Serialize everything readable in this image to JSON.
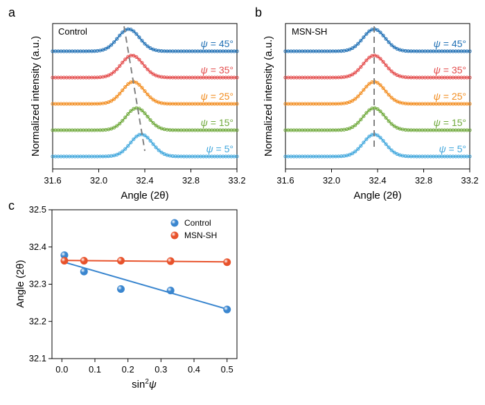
{
  "chart_data": [
    {
      "panel": "a",
      "type": "line",
      "label": "Control",
      "xlabel": "Angle (2θ)",
      "ylabel": "Normalized intensity (a.u.)",
      "xlim": [
        31.6,
        33.2
      ],
      "xticks": [
        31.6,
        32.0,
        32.4,
        32.8,
        33.2
      ],
      "xtick_labels": [
        "31.6",
        "32.0",
        "32.4",
        "32.8",
        "33.2"
      ],
      "series": [
        {
          "name": "ψ = 45°",
          "psi_symbol": "ψ",
          "psi_value": " = 45°",
          "color": "#1f6fb4",
          "peak": 32.26
        },
        {
          "name": "ψ = 35°",
          "psi_symbol": "ψ",
          "psi_value": " = 35°",
          "color": "#e34a4a",
          "peak": 32.29
        },
        {
          "name": "ψ = 25°",
          "psi_symbol": "ψ",
          "psi_value": " = 25°",
          "color": "#f28c1e",
          "peak": 32.3
        },
        {
          "name": "ψ = 15°",
          "psi_symbol": "ψ",
          "psi_value": " = 15°",
          "color": "#6ea83a",
          "peak": 32.33
        },
        {
          "name": "ψ = 5°",
          "psi_symbol": "ψ",
          "psi_value": " = 5°",
          "color": "#3fa6dc",
          "peak": 32.37
        }
      ],
      "guide_line": {
        "from": 32.22,
        "to": 32.4,
        "color": "#808080"
      }
    },
    {
      "panel": "b",
      "type": "line",
      "label": "MSN-SH",
      "xlabel": "Angle (2θ)",
      "ylabel": "Normalized intensity (a.u.)",
      "xlim": [
        31.6,
        33.2
      ],
      "xticks": [
        31.6,
        32.0,
        32.4,
        32.8,
        33.2
      ],
      "xtick_labels": [
        "31.6",
        "32.0",
        "32.4",
        "32.8",
        "33.2"
      ],
      "series": [
        {
          "name": "ψ = 45°",
          "psi_symbol": "ψ",
          "psi_value": " = 45°",
          "color": "#1f6fb4",
          "peak": 32.37
        },
        {
          "name": "ψ = 35°",
          "psi_symbol": "ψ",
          "psi_value": " = 35°",
          "color": "#e34a4a",
          "peak": 32.37
        },
        {
          "name": "ψ = 25°",
          "psi_symbol": "ψ",
          "psi_value": " = 25°",
          "color": "#f28c1e",
          "peak": 32.37
        },
        {
          "name": "ψ = 15°",
          "psi_symbol": "ψ",
          "psi_value": " = 15°",
          "color": "#6ea83a",
          "peak": 32.37
        },
        {
          "name": "ψ = 5°",
          "psi_symbol": "ψ",
          "psi_value": " = 5°",
          "color": "#3fa6dc",
          "peak": 32.37
        }
      ],
      "guide_line": {
        "from": 32.37,
        "to": 32.37,
        "color": "#808080"
      }
    },
    {
      "panel": "c",
      "type": "scatter",
      "xlabel_base": "sin",
      "xlabel_sup": "2",
      "xlabel_var": "ψ",
      "ylabel": "Angle (2θ)",
      "xlim": [
        -0.03,
        0.53
      ],
      "ylim": [
        32.1,
        32.5
      ],
      "xticks": [
        0.0,
        0.1,
        0.2,
        0.3,
        0.4,
        0.5
      ],
      "xtick_labels": [
        "0.0",
        "0.1",
        "0.2",
        "0.3",
        "0.4",
        "0.5"
      ],
      "yticks": [
        32.1,
        32.2,
        32.3,
        32.4,
        32.5
      ],
      "ytick_labels": [
        "32.1",
        "32.2",
        "32.3",
        "32.4",
        "32.5"
      ],
      "legend_position": "top-right",
      "series": [
        {
          "name": "Control",
          "color": "#3a86cf",
          "x": [
            0.0076,
            0.067,
            0.1786,
            0.329,
            0.5
          ],
          "y": [
            32.378,
            32.334,
            32.287,
            32.283,
            32.232
          ],
          "fit": {
            "x": [
              0.0,
              0.5
            ],
            "y": [
              32.361,
              32.233
            ]
          }
        },
        {
          "name": "MSN-SH",
          "color": "#e8522b",
          "x": [
            0.0076,
            0.067,
            0.1786,
            0.329,
            0.5
          ],
          "y": [
            32.363,
            32.363,
            32.363,
            32.362,
            32.359
          ],
          "fit": {
            "x": [
              0.0,
              0.5
            ],
            "y": [
              32.364,
              32.36
            ]
          }
        }
      ]
    }
  ],
  "panels": {
    "a": "a",
    "b": "b",
    "c": "c"
  }
}
